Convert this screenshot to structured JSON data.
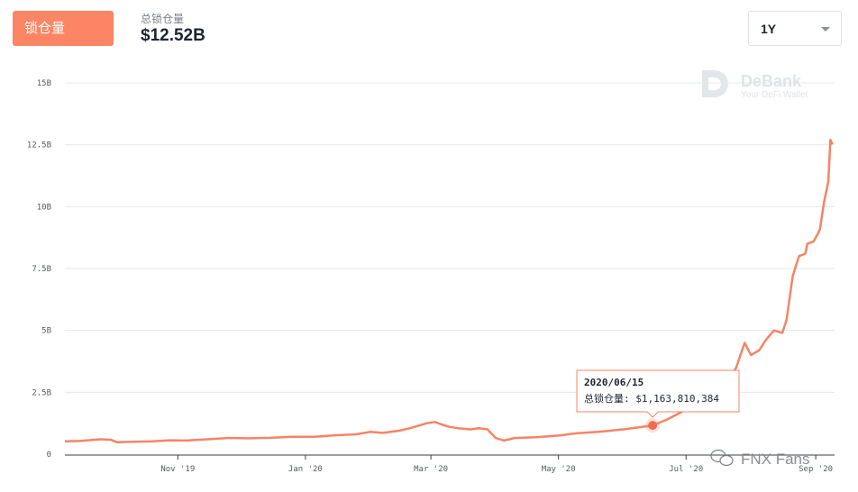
{
  "header": {
    "tab_label": "锁仓量",
    "stat_label": "总锁仓量",
    "stat_value": "$12.52B",
    "range_value": "1Y"
  },
  "watermark": {
    "brand": "DeBank",
    "tagline": "Your DeFi Wallet",
    "social": "FNX Fans"
  },
  "colors": {
    "accent": "#fb8564",
    "grid": "#e6e8eb"
  },
  "tooltip": {
    "date": "2020/06/15",
    "label": "总锁仓量:",
    "value": "$1,163,810,384"
  },
  "chart_data": {
    "type": "line",
    "title": "",
    "xlabel": "",
    "ylabel": "",
    "ylim": [
      0,
      15
    ],
    "y_unit": "B USD",
    "y_ticks": [
      "0",
      "2.5B",
      "5B",
      "7.5B",
      "10B",
      "12.5B",
      "15B"
    ],
    "x_ticks": [
      "Nov '19",
      "Jan '20",
      "Mar '20",
      "May '20",
      "Jul '20",
      "Sep '20"
    ],
    "x_tick_dates": [
      "2019-11-01",
      "2020-01-01",
      "2020-03-01",
      "2020-05-01",
      "2020-07-01",
      "2020-09-01"
    ],
    "grid": true,
    "series": [
      {
        "points": [
          [
            "2019-09-08",
            0.52
          ],
          [
            "2019-09-15",
            0.53
          ],
          [
            "2019-09-25",
            0.6
          ],
          [
            "2019-09-30",
            0.58
          ],
          [
            "2019-10-03",
            0.48
          ],
          [
            "2019-10-10",
            0.5
          ],
          [
            "2019-10-20",
            0.52
          ],
          [
            "2019-10-28",
            0.56
          ],
          [
            "2019-11-05",
            0.55
          ],
          [
            "2019-11-15",
            0.6
          ],
          [
            "2019-11-25",
            0.65
          ],
          [
            "2019-12-05",
            0.64
          ],
          [
            "2019-12-15",
            0.66
          ],
          [
            "2019-12-25",
            0.7
          ],
          [
            "2020-01-05",
            0.7
          ],
          [
            "2020-01-15",
            0.76
          ],
          [
            "2020-01-25",
            0.8
          ],
          [
            "2020-02-01",
            0.9
          ],
          [
            "2020-02-07",
            0.86
          ],
          [
            "2020-02-15",
            0.95
          ],
          [
            "2020-02-20",
            1.05
          ],
          [
            "2020-02-28",
            1.25
          ],
          [
            "2020-03-03",
            1.3
          ],
          [
            "2020-03-06",
            1.2
          ],
          [
            "2020-03-10",
            1.1
          ],
          [
            "2020-03-14",
            1.05
          ],
          [
            "2020-03-20",
            1.0
          ],
          [
            "2020-03-24",
            1.05
          ],
          [
            "2020-03-28",
            1.0
          ],
          [
            "2020-04-01",
            0.65
          ],
          [
            "2020-04-05",
            0.55
          ],
          [
            "2020-04-10",
            0.65
          ],
          [
            "2020-04-20",
            0.68
          ],
          [
            "2020-05-01",
            0.75
          ],
          [
            "2020-05-10",
            0.85
          ],
          [
            "2020-05-20",
            0.9
          ],
          [
            "2020-06-01",
            1.0
          ],
          [
            "2020-06-10",
            1.1
          ],
          [
            "2020-06-15",
            1.16
          ],
          [
            "2020-06-22",
            1.4
          ],
          [
            "2020-07-01",
            1.8
          ],
          [
            "2020-07-08",
            2.1
          ],
          [
            "2020-07-15",
            2.5
          ],
          [
            "2020-07-20",
            2.8
          ],
          [
            "2020-07-25",
            3.5
          ],
          [
            "2020-07-29",
            4.5
          ],
          [
            "2020-08-01",
            4.0
          ],
          [
            "2020-08-05",
            4.2
          ],
          [
            "2020-08-08",
            4.6
          ],
          [
            "2020-08-12",
            5.0
          ],
          [
            "2020-08-16",
            4.9
          ],
          [
            "2020-08-18",
            5.4
          ],
          [
            "2020-08-21",
            7.2
          ],
          [
            "2020-08-24",
            8.0
          ],
          [
            "2020-08-27",
            8.1
          ],
          [
            "2020-08-28",
            8.5
          ],
          [
            "2020-08-31",
            8.6
          ],
          [
            "2020-09-02",
            8.9
          ],
          [
            "2020-09-03",
            9.1
          ],
          [
            "2020-09-05",
            10.2
          ],
          [
            "2020-09-07",
            11.0
          ],
          [
            "2020-09-08",
            12.7
          ],
          [
            "2020-09-09",
            12.52
          ]
        ]
      }
    ],
    "highlight": {
      "date": "2020-06-15",
      "value": 1.16
    }
  }
}
